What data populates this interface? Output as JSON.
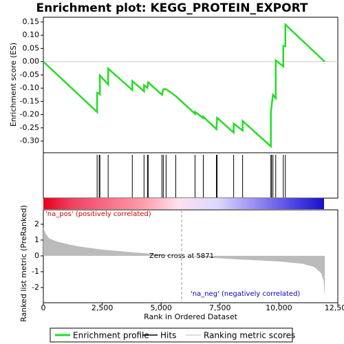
{
  "chart_data": {
    "type": "gsea",
    "title": "Enrichment plot: KEGG_PROTEIN_EXPORT",
    "xlabel": "Rank in Ordered Dataset",
    "xlim": [
      0,
      12500
    ],
    "xticks": [
      0,
      {
        "value": 2500,
        "label": "2,500"
      },
      {
        "value": 5000,
        "label": "5,000"
      },
      {
        "value": 7500,
        "label": "7,500"
      },
      {
        "value": 10000,
        "label": "10,000"
      },
      {
        "value": 12500,
        "label": "12,500"
      }
    ],
    "es": {
      "ylabel": "Enrichment score (ES)",
      "color": "#22dd22",
      "ylim": [
        -0.344,
        0.168
      ],
      "yticks": [
        0.15,
        {
          "value": 0.1,
          "label": "0.10"
        },
        0.05,
        {
          "value": 0,
          "label": "0.00"
        },
        -0.05,
        {
          "value": -0.1,
          "label": "-0.10"
        },
        -0.15,
        {
          "value": -0.2,
          "label": "-0.20"
        },
        -0.25,
        {
          "value": -0.3,
          "label": "-0.30"
        }
      ],
      "x": [
        0,
        2283,
        2283,
        2371,
        2400,
        2400,
        2751,
        2751,
        3776,
        3776,
        4274,
        4274,
        4420,
        4450,
        5035,
        5093,
        5210,
        5620,
        6440,
        6440,
        6790,
        6790,
        7347,
        7376,
        8079,
        8079,
        8459,
        8459,
        9659,
        9659,
        9747,
        9864,
        9864,
        10186,
        10186,
        10274,
        10274,
        11942
      ],
      "values": [
        0,
        -0.19,
        -0.118,
        -0.12,
        -0.123,
        -0.052,
        -0.086,
        -0.026,
        -0.107,
        -0.073,
        -0.112,
        -0.089,
        -0.099,
        -0.078,
        -0.125,
        -0.104,
        -0.104,
        -0.13,
        -0.197,
        -0.19,
        -0.213,
        -0.208,
        -0.255,
        -0.212,
        -0.268,
        -0.234,
        -0.26,
        -0.224,
        -0.32,
        -0.19,
        -0.125,
        -0.138,
        0.005,
        -0.018,
        0.06,
        0.058,
        0.14,
        0
      ]
    },
    "hits": [
      2283,
      2371,
      2400,
      2751,
      3776,
      4274,
      4420,
      4450,
      5035,
      5093,
      5210,
      5620,
      6440,
      6790,
      7347,
      7376,
      8079,
      8459,
      9659,
      9688,
      9747,
      9864,
      10186,
      10274
    ],
    "metric": {
      "ylabel": "Ranked list metric (PreRanked)",
      "color": "#bbbbbb",
      "ylim": [
        -2.96,
        2.91
      ],
      "yticks": [
        -2,
        -1,
        0,
        1,
        2
      ],
      "x": [
        0,
        100,
        250,
        600,
        1000,
        1500,
        2500,
        4000,
        5871,
        8000,
        10000,
        11000,
        11500,
        11800,
        11900,
        11950
      ],
      "values": [
        1.8,
        1.4,
        1.1,
        0.9,
        0.75,
        0.6,
        0.4,
        0.2,
        0,
        -0.2,
        -0.35,
        -0.5,
        -0.7,
        -1.1,
        -1.6,
        -2.6
      ]
    },
    "zero_cross": {
      "value": 5871,
      "label": "Zero cross at 5871"
    },
    "pos_label": "'na_pos' (positively correlated)",
    "neg_label": "'na_neg' (negatively correlated)",
    "legend": [
      {
        "name": "Enrichment profile",
        "color": "#22dd22"
      },
      {
        "name": "Hits",
        "color": "#000000"
      },
      {
        "name": "Ranking metric scores",
        "color": "#bbbbbb"
      }
    ]
  }
}
